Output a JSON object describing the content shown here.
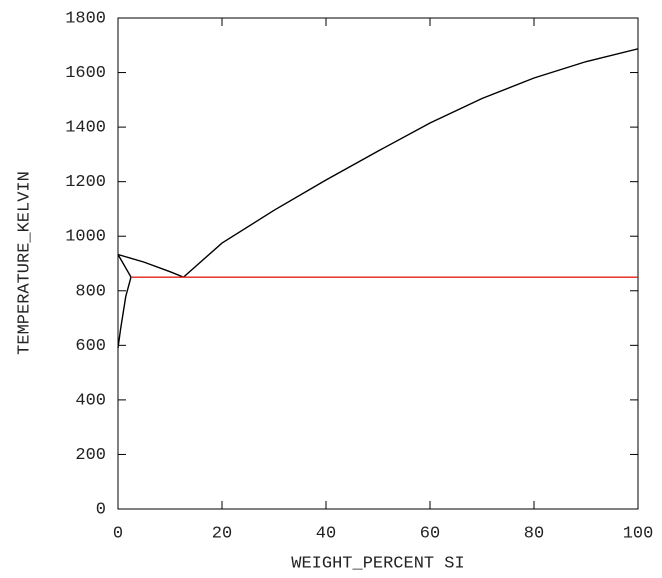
{
  "chart_data": {
    "type": "line",
    "x_label": "WEIGHT_PERCENT SI",
    "y_label": "TEMPERATURE_KELVIN",
    "xlim": [
      0,
      100
    ],
    "xticks": [
      0,
      20,
      40,
      60,
      80,
      100
    ],
    "ylim": [
      0,
      1800
    ],
    "yticks": [
      0,
      200,
      400,
      600,
      800,
      1000,
      1200,
      1400,
      1600,
      1800
    ],
    "series": [
      {
        "color": "#000000",
        "x": [
          0,
          5,
          10,
          12.6
        ],
        "values": [
          933,
          905,
          870,
          850
        ]
      },
      {
        "color": "#000000",
        "x": [
          12.6,
          20,
          30,
          40,
          50,
          60,
          70,
          80,
          90,
          100
        ],
        "values": [
          850,
          975,
          1095,
          1206,
          1312,
          1415,
          1505,
          1580,
          1640,
          1687
        ]
      },
      {
        "color": "#000000",
        "x": [
          0,
          1,
          2.5
        ],
        "values": [
          933,
          900,
          850
        ]
      },
      {
        "color": "#000000",
        "x": [
          2.5,
          1.5,
          0.5,
          0
        ],
        "values": [
          850,
          780,
          660,
          590
        ]
      },
      {
        "color": "#e0201a",
        "x": [
          2.5,
          100
        ],
        "values": [
          850,
          850
        ]
      }
    ]
  }
}
